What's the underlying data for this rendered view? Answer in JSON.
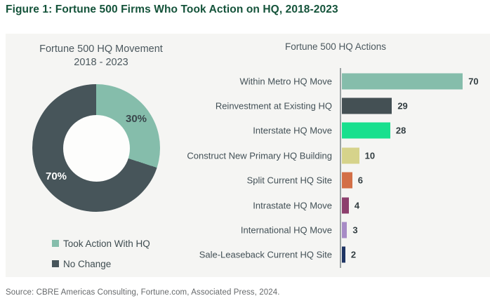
{
  "figure_title": "Figure 1: Fortune 500 Firms Who Took Action on HQ, 2018-2023",
  "source_note": "Source: CBRE Americas Consulting, Fortune.com, Associated Press, 2024.",
  "theme_colors": {
    "title_green": "#14533a",
    "panel_background": "#f5f5f3",
    "muted_green": "#85BDAB",
    "dark_slate": "#47555A",
    "axis_gray": "#9ba2a3"
  },
  "chart_data": [
    {
      "type": "pie",
      "donut": true,
      "title": "Fortune 500 HQ Movement 2018 - 2023",
      "title_line1": "Fortune 500 HQ Movement",
      "title_line2": "2018 - 2023",
      "labels": [
        "Took Action With HQ",
        "No Change"
      ],
      "values": [
        30,
        70
      ],
      "value_labels": [
        "30%",
        "70%"
      ],
      "colors": [
        "#85BDAB",
        "#47555A"
      ],
      "legend_position": "bottom-left",
      "start_angle_deg": 0,
      "direction": "clockwise"
    },
    {
      "type": "bar",
      "orientation": "horizontal",
      "title": "Fortune 500 HQ Actions",
      "categories": [
        "Within Metro HQ Move",
        "Reinvestment at Existing HQ",
        "Interstate HQ Move",
        "Construct New Primary HQ Building",
        "Split Current HQ Site",
        "Intrastate HQ Move",
        "International HQ Move",
        "Sale-Leaseback Current HQ Site"
      ],
      "values": [
        70,
        29,
        28,
        10,
        6,
        4,
        3,
        2
      ],
      "colors": [
        "#85BDAB",
        "#445054",
        "#18E08E",
        "#D6D38B",
        "#D36F47",
        "#8C3F6D",
        "#A78BC6",
        "#1E3463"
      ],
      "xlim": [
        0,
        75
      ],
      "grid": false,
      "value_labels_shown": true
    }
  ]
}
